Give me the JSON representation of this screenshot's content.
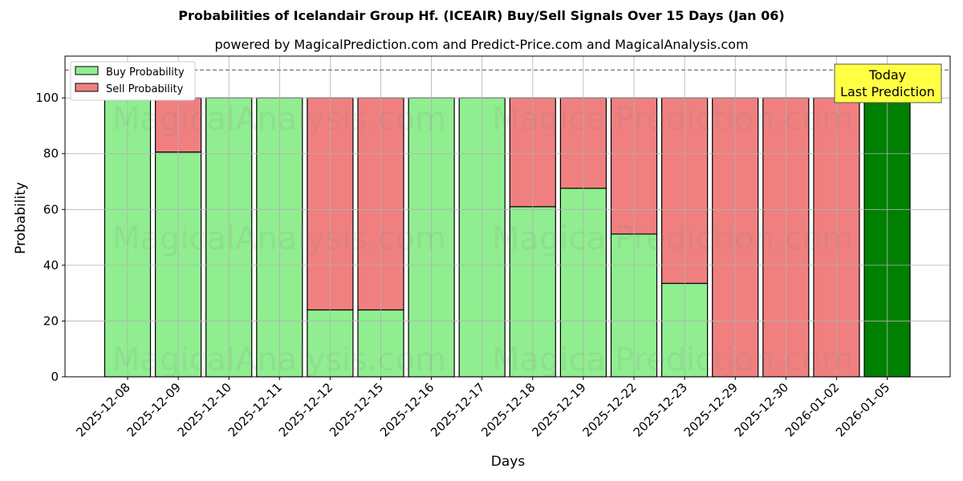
{
  "chart_data": {
    "type": "bar",
    "stacked": true,
    "title": "Probabilities of Icelandair Group Hf. (ICEAIR) Buy/Sell Signals Over 15 Days (Jan 06)",
    "subtitle": "powered by MagicalPrediction.com and Predict-Price.com and MagicalAnalysis.com",
    "xlabel": "Days",
    "ylabel": "Probability",
    "ylim": [
      0,
      115
    ],
    "yticks": [
      0,
      20,
      40,
      60,
      80,
      100
    ],
    "grid": true,
    "legend_position": "upper left",
    "reference_line": {
      "y": 110,
      "style": "dashed"
    },
    "categories": [
      "2025-12-08",
      "2025-12-09",
      "2025-12-10",
      "2025-12-11",
      "2025-12-12",
      "2025-12-15",
      "2025-12-16",
      "2025-12-17",
      "2025-12-18",
      "2025-12-19",
      "2025-12-22",
      "2025-12-23",
      "2025-12-29",
      "2025-12-30",
      "2026-01-02",
      "2026-01-05"
    ],
    "series": [
      {
        "name": "Buy Probability",
        "color": "#90EE90",
        "values": [
          100,
          80.6,
          100,
          100,
          24.0,
          24.0,
          100,
          100,
          61.0,
          67.6,
          51.2,
          33.5,
          0,
          0,
          0,
          100
        ]
      },
      {
        "name": "Sell Probability",
        "color": "#F08080",
        "values": [
          0,
          19.4,
          0,
          0,
          76.0,
          76.0,
          0,
          0,
          39.0,
          32.4,
          48.8,
          66.5,
          100,
          100,
          100,
          0
        ]
      }
    ],
    "highlight": {
      "index": 15,
      "color": "#008000"
    },
    "annotation": {
      "text_line1": "Today",
      "text_line2": "Last Prediction",
      "bg": "#FFFF44"
    },
    "watermarks": [
      "MagicalAnalysis.com",
      "MagicalPrediction.com"
    ]
  }
}
